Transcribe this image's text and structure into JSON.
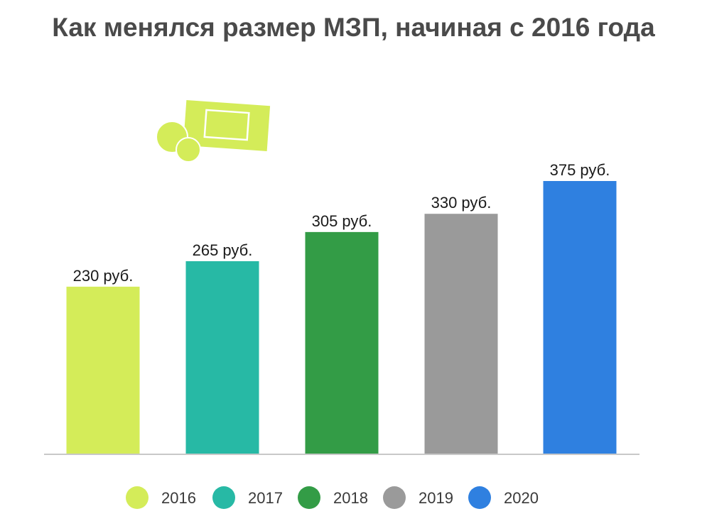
{
  "chart_data": {
    "type": "bar",
    "title": "Как менялся размер МЗП, начиная с 2016 года",
    "categories": [
      "2016",
      "2017",
      "2018",
      "2019",
      "2020"
    ],
    "values": [
      230,
      265,
      305,
      330,
      375
    ],
    "data_labels": [
      "230 руб.",
      "265 руб.",
      "305 руб.",
      "330 руб.",
      "375 руб."
    ],
    "colors": [
      "#d4ec59",
      "#27b9a5",
      "#339c46",
      "#9a9a9a",
      "#2f80e0"
    ],
    "ylim": [
      0,
      420
    ],
    "grid": false,
    "legend_position": "bottom",
    "xlabel": "",
    "ylabel": ""
  },
  "decoration": {
    "icon": "coins-and-banknote-icon",
    "color": "#d4ec59"
  }
}
